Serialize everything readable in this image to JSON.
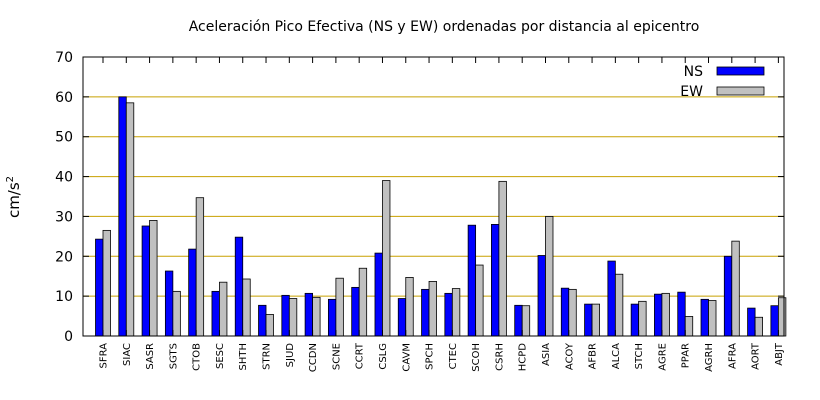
{
  "chart_data": {
    "type": "bar",
    "title": "Aceleración Pico Efectiva (NS y EW) ordenadas por distancia al epicentro",
    "xlabel": "",
    "ylabel": "cm/s",
    "ylabel_sup": "2",
    "ylim": [
      0,
      70
    ],
    "yticks": [
      0,
      10,
      20,
      30,
      40,
      50,
      60,
      70
    ],
    "grid": true,
    "legend_position": "top-right",
    "categories": [
      "SFRA",
      "SIAC",
      "SASR",
      "SGTS",
      "CTOB",
      "SESC",
      "SHTH",
      "STRN",
      "SJUD",
      "CCDN",
      "SCNE",
      "CCRT",
      "CSLG",
      "CAVM",
      "SPCH",
      "CTEC",
      "SCOH",
      "CSRH",
      "HCPD",
      "ASIA",
      "ACOY",
      "AFBR",
      "ALCA",
      "STCH",
      "AGRE",
      "PPAR",
      "AGRH",
      "AFRA",
      "AORT",
      "ABJT"
    ],
    "series": [
      {
        "name": "NS",
        "color": "#0000ff",
        "values": [
          24.3,
          60.0,
          27.6,
          16.3,
          21.8,
          11.2,
          24.8,
          7.7,
          10.2,
          10.7,
          9.2,
          12.2,
          20.8,
          9.4,
          11.7,
          10.7,
          27.8,
          28.0,
          7.7,
          20.2,
          12.0,
          8.0,
          18.8,
          8.0,
          10.5,
          11.0,
          9.2,
          20.0,
          7.0,
          7.6
        ]
      },
      {
        "name": "EW",
        "color": "#c0c0c0",
        "values": [
          26.5,
          58.5,
          29.0,
          11.2,
          34.7,
          13.5,
          14.3,
          5.4,
          9.4,
          9.7,
          14.5,
          17.0,
          39.0,
          14.7,
          13.7,
          11.9,
          17.8,
          38.8,
          7.6,
          30.0,
          11.7,
          8.0,
          15.5,
          8.7,
          10.7,
          4.9,
          8.9,
          23.8,
          4.7,
          9.6
        ]
      }
    ]
  }
}
